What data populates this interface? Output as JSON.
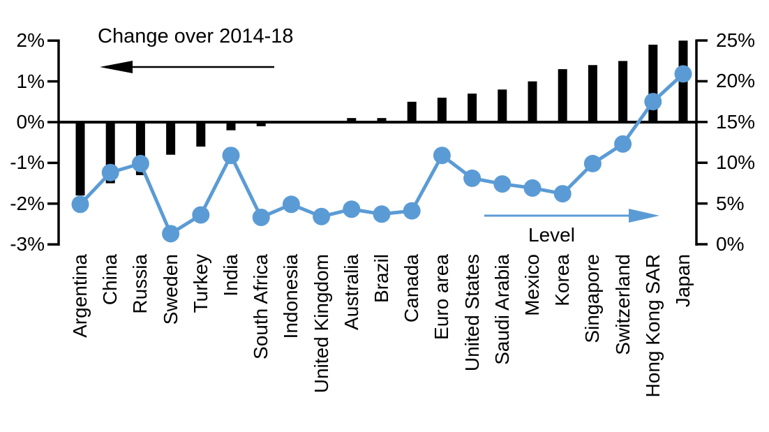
{
  "annotations": {
    "change_label": "Change over 2014-18",
    "level_label": "Level"
  },
  "colors": {
    "bar": "#000000",
    "line": "#5B9BD5",
    "background": "#FFFFFF",
    "text": "#000000"
  },
  "chart_data": {
    "type": "bar",
    "subtype": "combo-bar-line-dual-axis",
    "title": "",
    "categories": [
      "Argentina",
      "China",
      "Russia",
      "Sweden",
      "Turkey",
      "India",
      "South Africa",
      "Indonesia",
      "United Kingdom",
      "Australia",
      "Brazil",
      "Canada",
      "Euro area",
      "United States",
      "Saudi Arabia",
      "Mexico",
      "Korea",
      "Singapore",
      "Switzerland",
      "Hong Kong SAR",
      "Japan"
    ],
    "series": [
      {
        "name": "Change over 2014-18",
        "type": "bar",
        "axis": "left",
        "unit": "%",
        "color": "#000000",
        "values": [
          -1.8,
          -1.5,
          -1.3,
          -0.8,
          -0.6,
          -0.2,
          -0.1,
          0.0,
          0.0,
          0.1,
          0.1,
          0.5,
          0.6,
          0.7,
          0.8,
          1.0,
          1.3,
          1.4,
          1.5,
          1.9,
          2.0
        ]
      },
      {
        "name": "Level",
        "type": "line",
        "axis": "right",
        "unit": "%",
        "color": "#5B9BD5",
        "values": [
          4.9,
          8.8,
          9.9,
          1.3,
          3.6,
          10.9,
          3.3,
          4.9,
          3.4,
          4.3,
          3.7,
          4.1,
          10.9,
          8.1,
          7.4,
          6.9,
          6.2,
          9.9,
          12.3,
          17.5,
          20.9
        ]
      }
    ],
    "left_axis": {
      "tick_labels": [
        "2%",
        "1%",
        "0%",
        "-1%",
        "-2%",
        "-3%"
      ],
      "tick_values": [
        2,
        1,
        0,
        -1,
        -2,
        -3
      ],
      "range": [
        -3,
        2
      ]
    },
    "right_axis": {
      "tick_labels": [
        "25%",
        "20%",
        "15%",
        "10%",
        "5%",
        "0%"
      ],
      "tick_values": [
        25,
        20,
        15,
        10,
        5,
        0
      ],
      "range": [
        0,
        25
      ]
    },
    "grid": false,
    "legend_position": "annotation-arrows",
    "annotations": [
      {
        "text": "Change over 2014-18",
        "arrow": "points-left-to-left-axis",
        "color": "#000000"
      },
      {
        "text": "Level",
        "arrow": "points-right-to-right-axis",
        "color": "#5B9BD5"
      }
    ]
  }
}
